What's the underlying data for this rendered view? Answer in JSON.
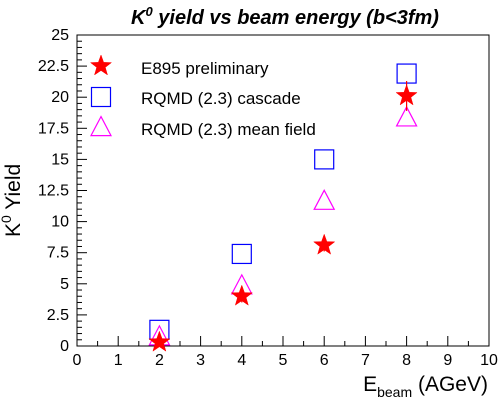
{
  "chart_data": {
    "type": "scatter",
    "title_parts": {
      "k": "K",
      "sup": "0",
      "rest": " yield vs beam energy (b<3fm)"
    },
    "xlabel_parts": {
      "main": "E",
      "sub": "beam",
      "rest": " (AGeV)"
    },
    "ylabel_parts": {
      "main": "K",
      "sup": "0",
      "rest": " Yield"
    },
    "xlim": [
      0,
      10
    ],
    "ylim": [
      0,
      25
    ],
    "x_ticks": [
      0,
      1,
      2,
      3,
      4,
      5,
      6,
      7,
      8,
      9,
      10
    ],
    "y_ticks": [
      0,
      2.5,
      5,
      7.5,
      10,
      12.5,
      15,
      17.5,
      20,
      22.5,
      25
    ],
    "grid": false,
    "legend_position": "top-left",
    "series": [
      {
        "name": "E895 preliminary",
        "marker": "star",
        "color": "#ff0000",
        "x": [
          2,
          4,
          6,
          8
        ],
        "y": [
          0.3,
          4.0,
          8.1,
          20.1
        ],
        "yerr": [
          0.1,
          0.5,
          0.5,
          1.2
        ]
      },
      {
        "name": "RQMD (2.3) cascade",
        "marker": "open-square",
        "color": "#0000ff",
        "x": [
          2,
          4,
          6,
          8
        ],
        "y": [
          1.3,
          7.4,
          15.0,
          21.9
        ],
        "yerr": [
          0,
          0,
          0,
          0
        ]
      },
      {
        "name": "RQMD (2.3) mean field",
        "marker": "open-triangle",
        "color": "#ff00ff",
        "x": [
          2,
          4,
          6,
          8
        ],
        "y": [
          0.7,
          4.8,
          11.6,
          18.3
        ],
        "yerr": [
          0,
          0,
          0,
          0
        ]
      }
    ]
  }
}
